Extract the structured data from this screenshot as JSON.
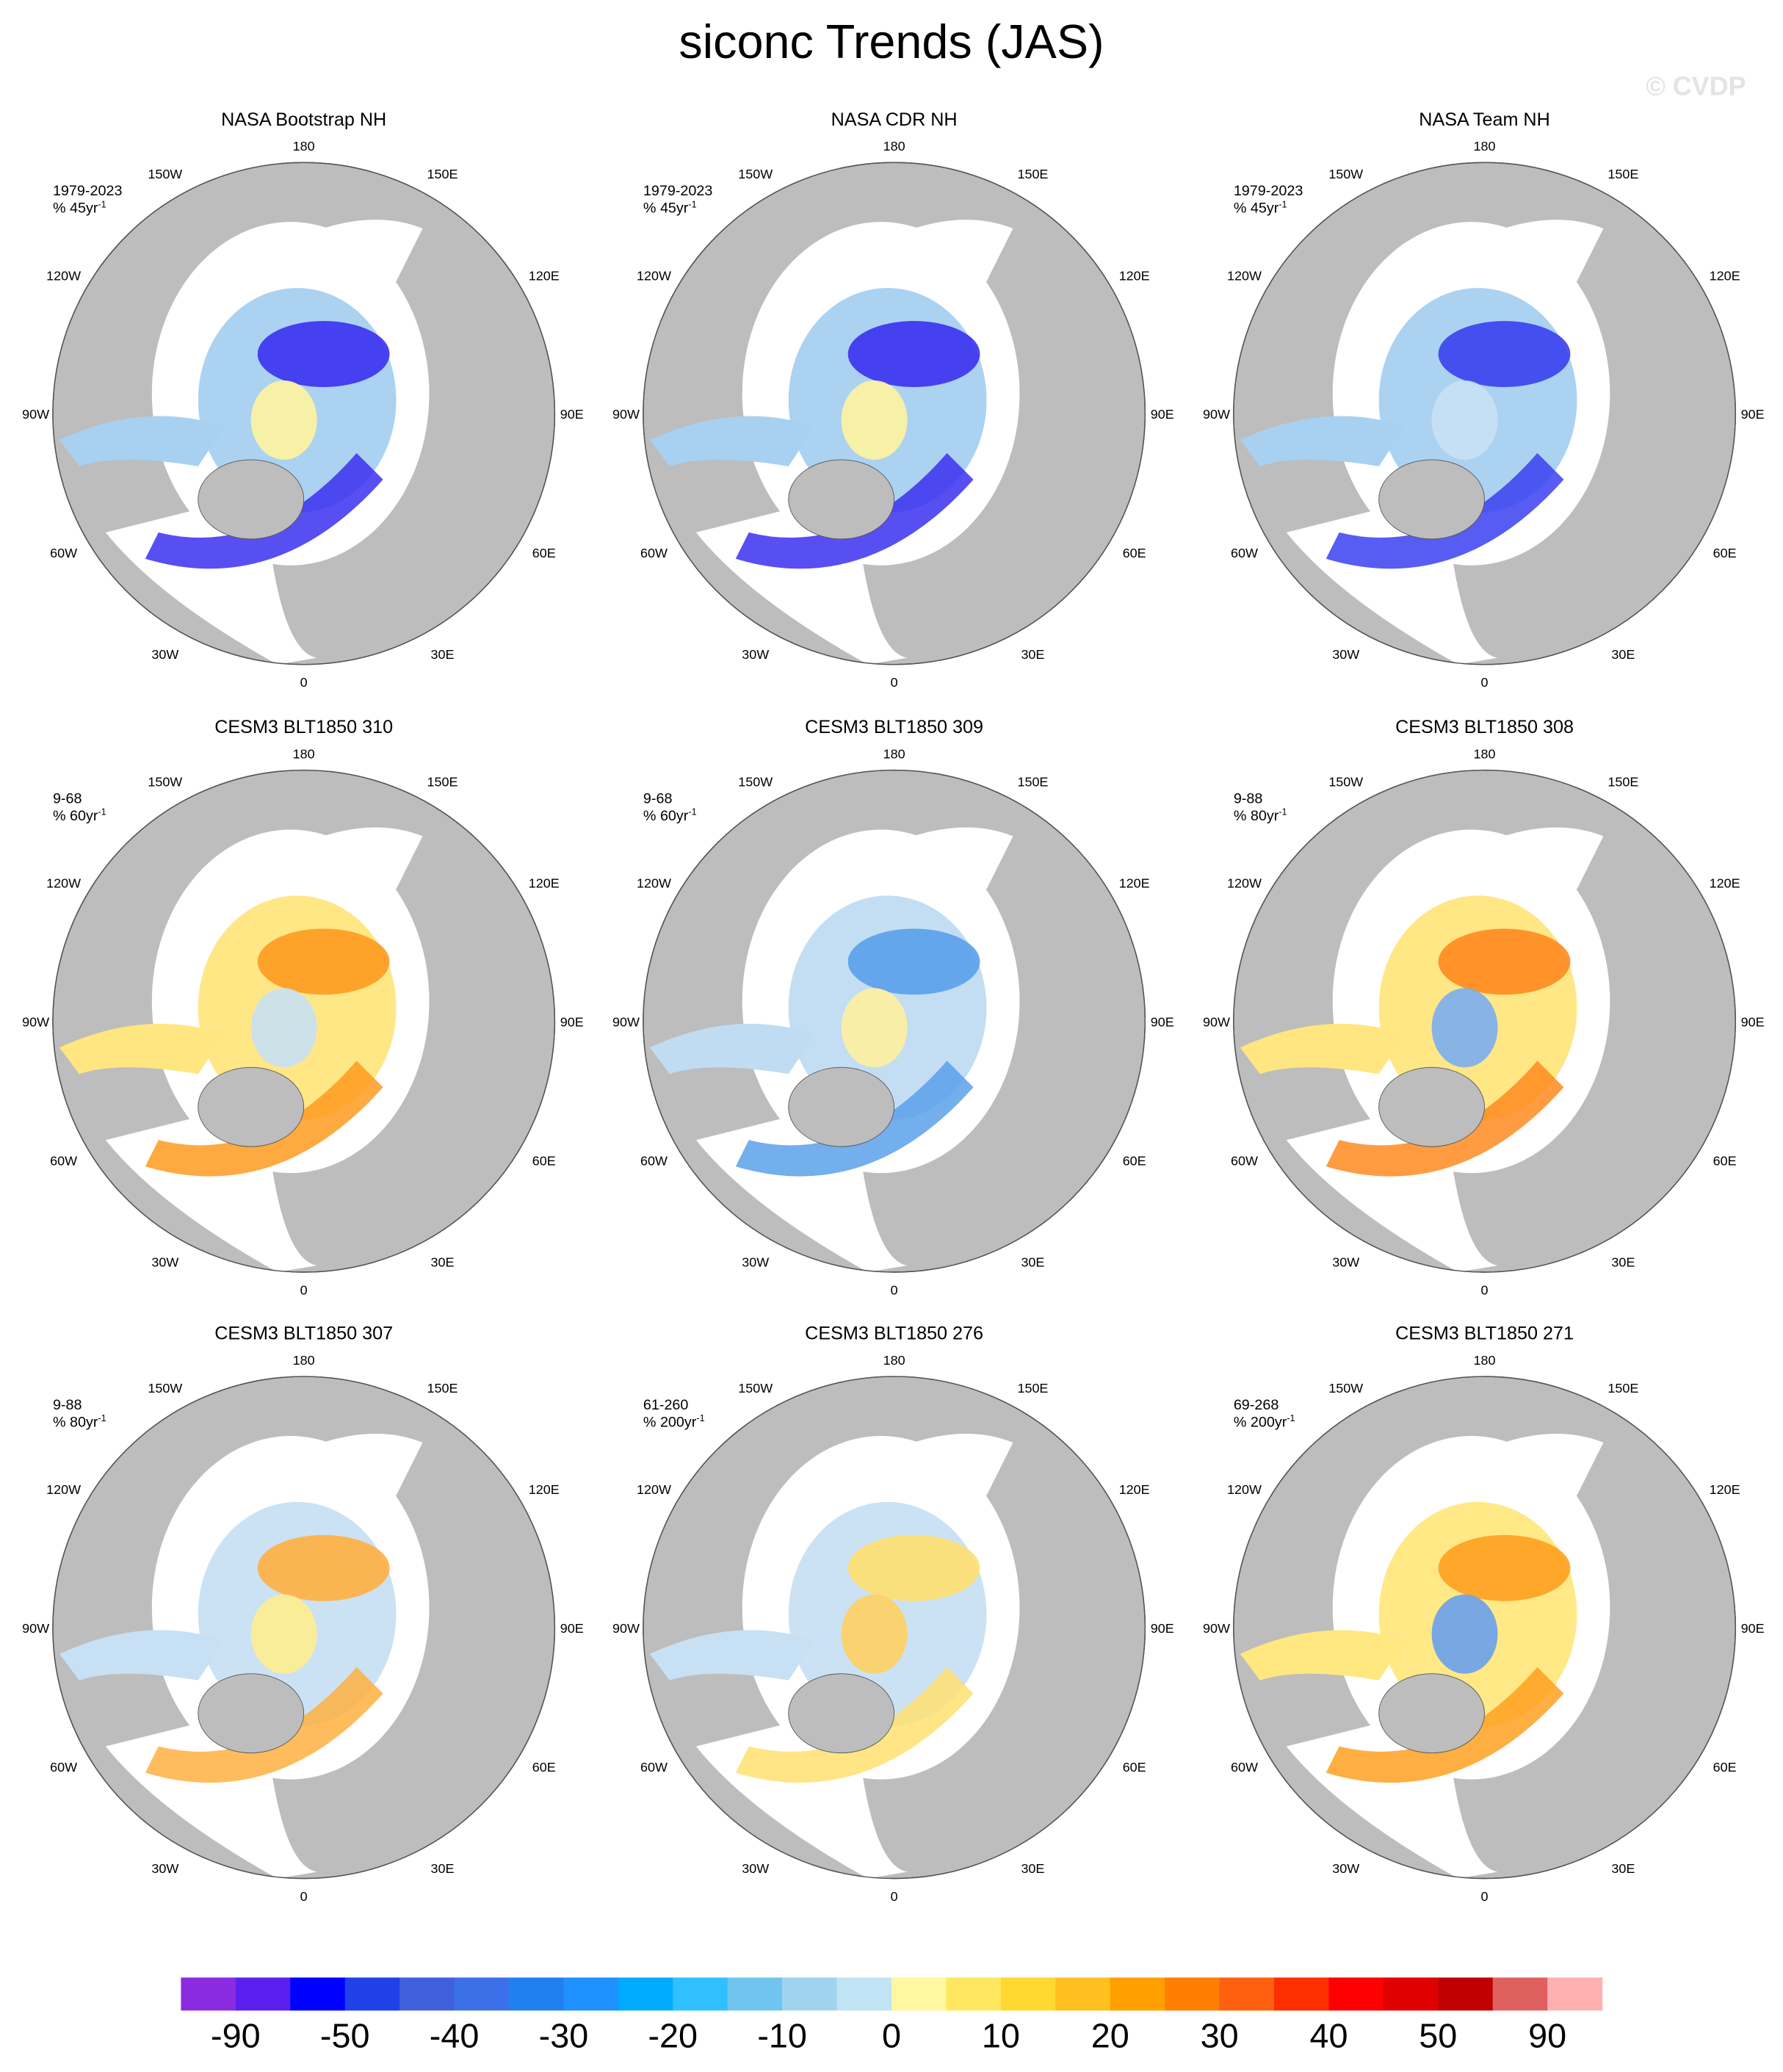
{
  "title": "siconc Trends (JAS)",
  "watermark": "© CVDP",
  "lon_labels": [
    "180",
    "150E",
    "120E",
    "90E",
    "60E",
    "30E",
    "0",
    "30W",
    "60W",
    "90W",
    "120W",
    "150W"
  ],
  "panels": [
    {
      "title": "NASA Bootstrap NH",
      "period": "1979-2023",
      "units": "% 45yr",
      "units_sup": "-1"
    },
    {
      "title": "NASA CDR NH",
      "period": "1979-2023",
      "units": "% 45yr",
      "units_sup": "-1"
    },
    {
      "title": "NASA Team NH",
      "period": "1979-2023",
      "units": "% 45yr",
      "units_sup": "-1"
    },
    {
      "title": "CESM3 BLT1850 310",
      "period": "9-68",
      "units": "% 60yr",
      "units_sup": "-1"
    },
    {
      "title": "CESM3 BLT1850 309",
      "period": "9-68",
      "units": "% 60yr",
      "units_sup": "-1"
    },
    {
      "title": "CESM3 BLT1850 308",
      "period": "9-88",
      "units": "% 80yr",
      "units_sup": "-1"
    },
    {
      "title": "CESM3 BLT1850 307",
      "period": "9-88",
      "units": "% 80yr",
      "units_sup": "-1"
    },
    {
      "title": "CESM3 BLT1850 276",
      "period": "61-260",
      "units": "% 200yr",
      "units_sup": "-1"
    },
    {
      "title": "CESM3 BLT1850 271",
      "period": "69-268",
      "units": "% 200yr",
      "units_sup": "-1"
    }
  ],
  "colorbar": {
    "colors": [
      "#8a2be2",
      "#5a1ff0",
      "#0000ff",
      "#2040e8",
      "#4060e0",
      "#3c70e8",
      "#2080f0",
      "#1e90ff",
      "#00aaff",
      "#30c0ff",
      "#70c4f0",
      "#a0d4ee",
      "#c0e4f4",
      "#fff8a0",
      "#ffe860",
      "#ffd830",
      "#ffc020",
      "#ffa000",
      "#ff8000",
      "#ff6010",
      "#ff3000",
      "#ff0000",
      "#e00000",
      "#c00000",
      "#e06060",
      "#ffb0b0"
    ],
    "labels": [
      -90,
      -50,
      -40,
      -30,
      -20,
      -10,
      0,
      10,
      20,
      30,
      40,
      50,
      90
    ]
  }
}
